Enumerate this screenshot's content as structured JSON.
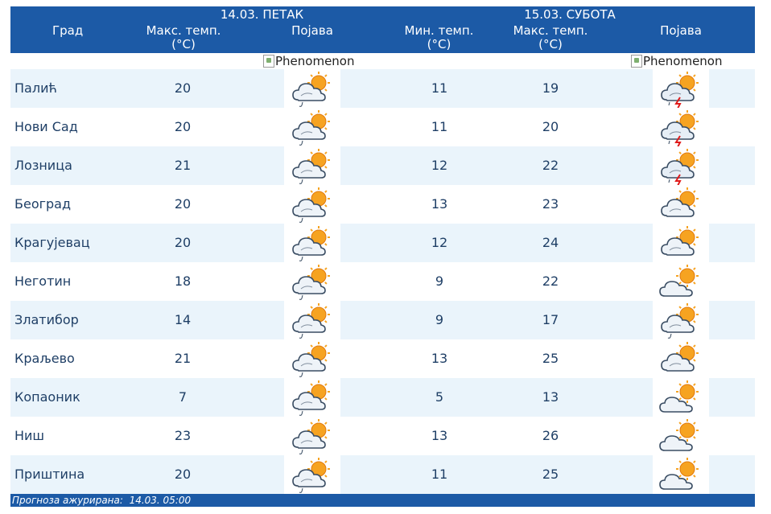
{
  "header": {
    "city_label": "Град",
    "day1": {
      "date": "14.03. ПЕТАК",
      "max_label": "Макс. темп.",
      "unit": "(°C)",
      "phen_label": "Појава"
    },
    "day2": {
      "date": "15.03. СУБОТА",
      "min_label": "Мин. темп.",
      "min_unit": "(°C)",
      "max_label": "Макс. темп.",
      "max_unit": "(°C)",
      "phen_label": "Појава"
    }
  },
  "broken_image": {
    "alt1": "Phenomenon",
    "alt2": "Phenomenon"
  },
  "rows": [
    {
      "city": "Палић",
      "max1": "20",
      "icon1": "cloud-sun-drizzle-icon",
      "min2": "11",
      "max2": "19",
      "icon2": "cloud-sun-lightning-icon"
    },
    {
      "city": "Нови Сад",
      "max1": "20",
      "icon1": "cloud-sun-drizzle-icon",
      "min2": "11",
      "max2": "20",
      "icon2": "cloud-sun-lightning-icon"
    },
    {
      "city": "Лозница",
      "max1": "21",
      "icon1": "cloud-sun-drizzle-icon",
      "min2": "12",
      "max2": "22",
      "icon2": "cloud-sun-lightning-icon"
    },
    {
      "city": "Београд",
      "max1": "20",
      "icon1": "cloud-sun-drizzle-icon",
      "min2": "13",
      "max2": "23",
      "icon2": "cloudy-sun-icon"
    },
    {
      "city": "Крагујевац",
      "max1": "20",
      "icon1": "cloud-sun-drizzle-icon",
      "min2": "12",
      "max2": "24",
      "icon2": "cloudy-sun-icon"
    },
    {
      "city": "Неготин",
      "max1": "18",
      "icon1": "cloud-sun-drizzle-icon",
      "min2": "9",
      "max2": "22",
      "icon2": "partly-cloudy-icon"
    },
    {
      "city": "Златибор",
      "max1": "14",
      "icon1": "cloud-sun-drizzle-icon",
      "min2": "9",
      "max2": "17",
      "icon2": "cloud-sun-drizzle-icon"
    },
    {
      "city": "Краљево",
      "max1": "21",
      "icon1": "cloud-sun-drizzle-icon",
      "min2": "13",
      "max2": "25",
      "icon2": "cloudy-sun-icon"
    },
    {
      "city": "Копаоник",
      "max1": "7",
      "icon1": "cloud-sun-drizzle-icon",
      "min2": "5",
      "max2": "13",
      "icon2": "partly-cloudy-icon"
    },
    {
      "city": "Ниш",
      "max1": "23",
      "icon1": "cloud-sun-drizzle-icon",
      "min2": "13",
      "max2": "26",
      "icon2": "partly-cloudy-icon"
    },
    {
      "city": "Приштина",
      "max1": "20",
      "icon1": "cloud-sun-drizzle-icon",
      "min2": "11",
      "max2": "25",
      "icon2": "partly-cloudy-icon"
    }
  ],
  "footer": {
    "label": "Прогноза ажурирана:",
    "value": "14.03. 05:00"
  },
  "colors": {
    "header_bg": "#1c5aa6",
    "row_alt": "#eaf4fb",
    "text": "#1f3f66"
  }
}
